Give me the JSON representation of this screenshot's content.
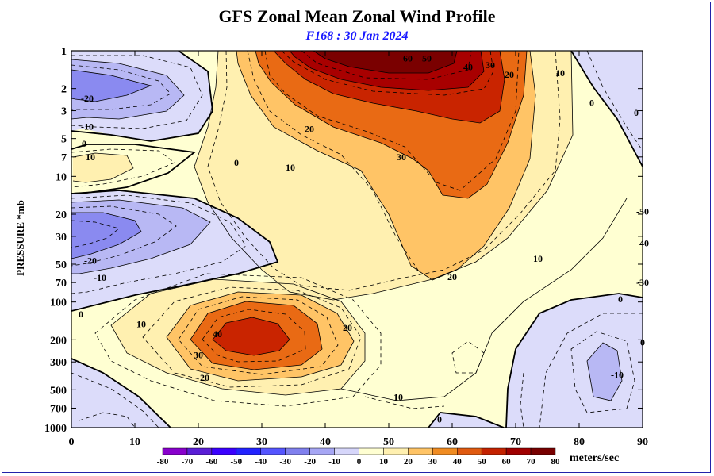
{
  "title": "GFS Zonal Mean Zonal Wind Profile",
  "subtitle": "F168 : 30 Jan 2024",
  "chart_data": {
    "type": "contour",
    "ylabel": "PRESSURE *mb",
    "xlabel": "",
    "x_ticks": [
      0,
      10,
      20,
      30,
      40,
      50,
      60,
      70,
      80,
      90
    ],
    "y_ticks": [
      1,
      2,
      3,
      5,
      7,
      10,
      20,
      30,
      50,
      70,
      100,
      200,
      300,
      500,
      700,
      1000
    ],
    "xlim": [
      0,
      90
    ],
    "ylim": [
      1000,
      1
    ],
    "y_scale": "log",
    "colorbar": {
      "units": "meters/sec",
      "labels": [
        -80,
        -70,
        -60,
        -50,
        -40,
        -30,
        -20,
        -10,
        0,
        10,
        20,
        30,
        40,
        50,
        60,
        70,
        80
      ],
      "colors": [
        "#8800cc",
        "#5a1ed6",
        "#3a00ff",
        "#2222ff",
        "#5555ff",
        "#8080ee",
        "#a6a6f4",
        "#d6d6fa",
        "#ffffd2",
        "#fff0b0",
        "#ffc466",
        "#f08c22",
        "#e05a10",
        "#c42200",
        "#a00000",
        "#780000",
        "#8b6a2e"
      ]
    },
    "contour_labels": [
      {
        "x": 53,
        "p": 1.15,
        "text": "60"
      },
      {
        "x": 56,
        "p": 1.15,
        "text": "50"
      },
      {
        "x": 62.5,
        "p": 1.35,
        "text": "40"
      },
      {
        "x": 66,
        "p": 1.3,
        "text": "30"
      },
      {
        "x": 69,
        "p": 1.55,
        "text": "20"
      },
      {
        "x": 77,
        "p": 1.5,
        "text": "10"
      },
      {
        "x": 82,
        "p": 2.6,
        "text": "0"
      },
      {
        "x": 89,
        "p": 3.1,
        "text": "0"
      },
      {
        "x": 37.5,
        "p": 4.2,
        "text": "20"
      },
      {
        "x": 52,
        "p": 7,
        "text": "30"
      },
      {
        "x": 34.5,
        "p": 8.5,
        "text": "10"
      },
      {
        "x": 26,
        "p": 7.8,
        "text": "0"
      },
      {
        "x": 2.5,
        "p": 2.4,
        "text": "-20"
      },
      {
        "x": 2.5,
        "p": 4,
        "text": "-10"
      },
      {
        "x": 2,
        "p": 5.5,
        "text": "0"
      },
      {
        "x": 3,
        "p": 7,
        "text": "10"
      },
      {
        "x": 3,
        "p": 47,
        "text": "-20"
      },
      {
        "x": 4.5,
        "p": 64,
        "text": "-10"
      },
      {
        "x": 1.5,
        "p": 125,
        "text": "0"
      },
      {
        "x": 11,
        "p": 150,
        "text": "10"
      },
      {
        "x": 23,
        "p": 180,
        "text": "40"
      },
      {
        "x": 20,
        "p": 265,
        "text": "30"
      },
      {
        "x": 21,
        "p": 400,
        "text": "20"
      },
      {
        "x": 43.5,
        "p": 160,
        "text": "20"
      },
      {
        "x": 60,
        "p": 63,
        "text": "20"
      },
      {
        "x": 73.5,
        "p": 45,
        "text": "10"
      },
      {
        "x": 51.5,
        "p": 570,
        "text": "10"
      },
      {
        "x": 58,
        "p": 860,
        "text": "0"
      },
      {
        "x": 86,
        "p": 380,
        "text": "-10"
      },
      {
        "x": 86.5,
        "p": 95,
        "text": "0"
      },
      {
        "x": 90,
        "p": 19,
        "text": "-50"
      },
      {
        "x": 90,
        "p": 34,
        "text": "-40"
      },
      {
        "x": 90,
        "p": 70,
        "text": "-30"
      },
      {
        "x": 90,
        "p": 210,
        "text": "0"
      }
    ]
  }
}
